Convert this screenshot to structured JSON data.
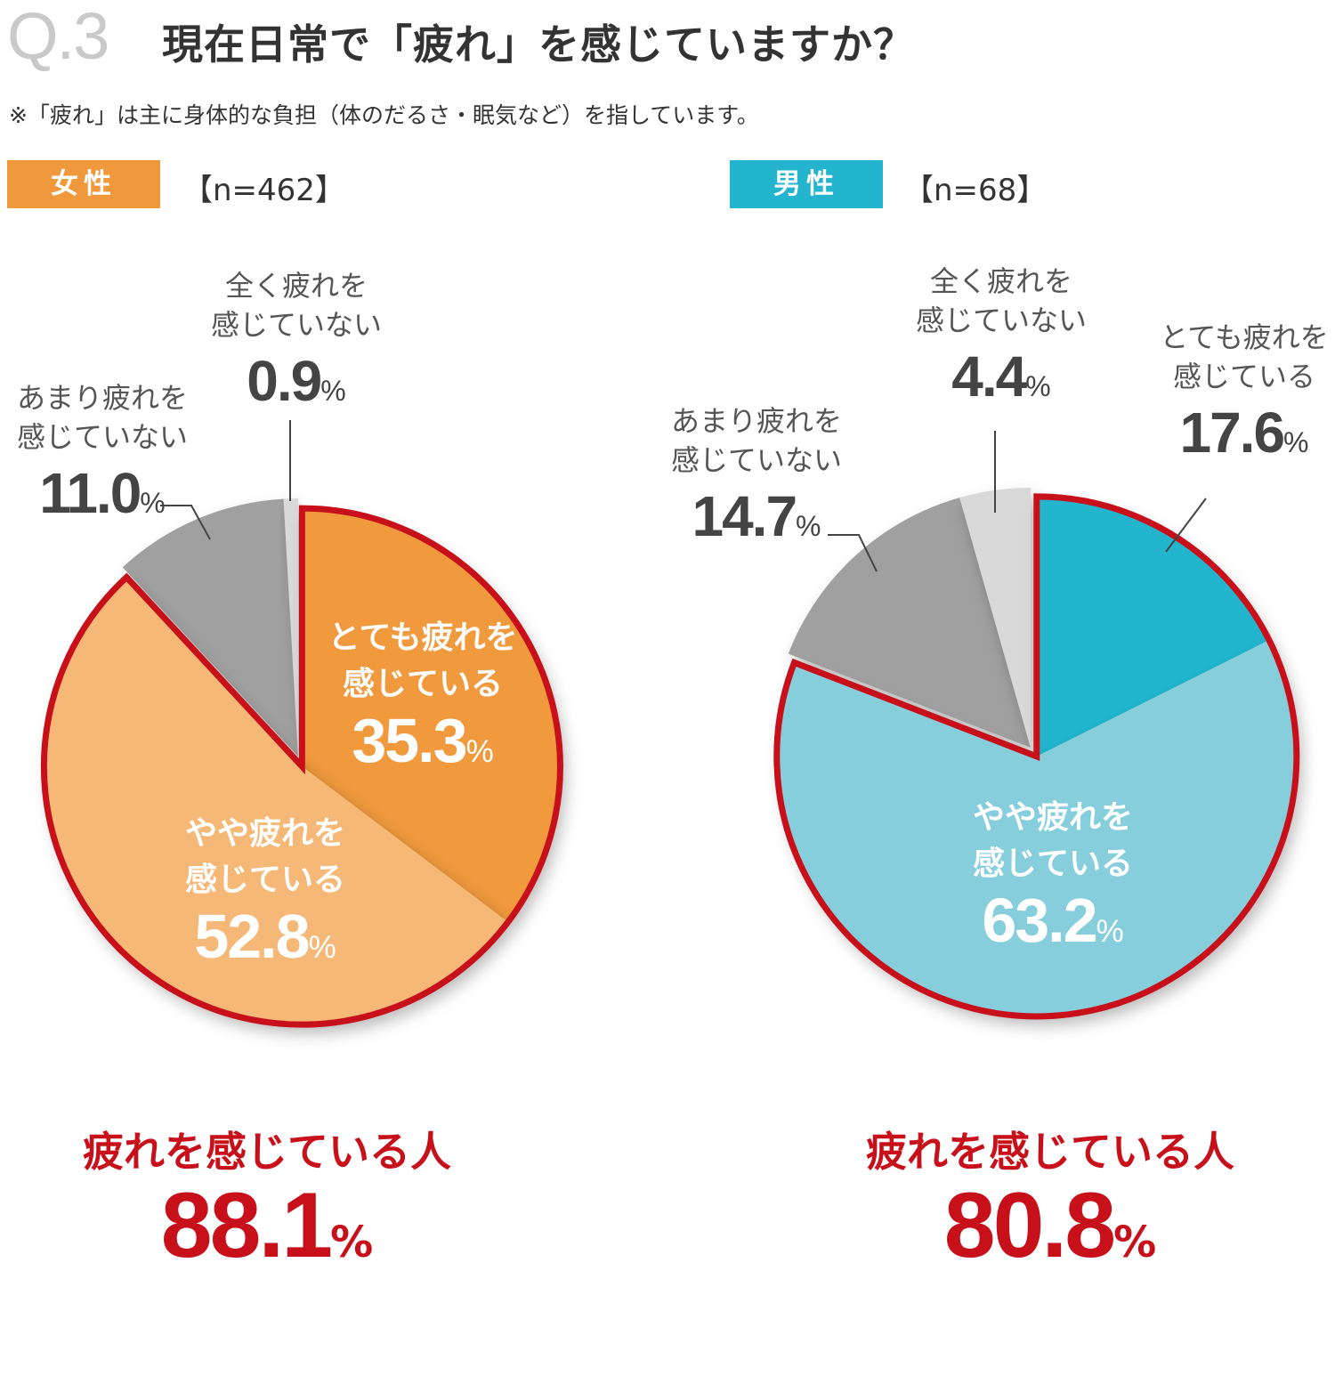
{
  "question": {
    "number": "Q.3",
    "title": "現在日常で「疲れ」を感じていますか？",
    "note": "※「疲れ」は主に身体的な負担（体のだるさ・眠気など）を指しています。"
  },
  "colors": {
    "highlight_outline": "#c8101a",
    "female_main": "#f0993c",
    "female_light": "#f5b877",
    "male_main": "#22b5cd",
    "male_light": "#87cedd",
    "gray": "#a0a0a0",
    "light_gray": "#d9d9d9"
  },
  "chart_data": [
    {
      "type": "pie",
      "badge": "女性",
      "n": "【n=462】",
      "slices": [
        {
          "label": "とても疲れを感じている",
          "value": 35.3,
          "display": "35.3",
          "color": "#f0993c",
          "highlight": true
        },
        {
          "label": "やや疲れを感じている",
          "value": 52.8,
          "display": "52.8",
          "color": "#f5b877",
          "highlight": true
        },
        {
          "label": "あまり疲れを感じていない",
          "value": 11.0,
          "display": "11.0",
          "color": "#a0a0a0",
          "highlight": false
        },
        {
          "label": "全く疲れを感じていない",
          "value": 0.9,
          "display": "0.9",
          "color": "#d9d9d9",
          "highlight": false
        }
      ],
      "total_label": "疲れを感じている人",
      "total_value": "88.1"
    },
    {
      "type": "pie",
      "badge": "男性",
      "n": "【n=68】",
      "slices": [
        {
          "label": "とても疲れを感じている",
          "value": 17.6,
          "display": "17.6",
          "color": "#22b5cd",
          "highlight": true
        },
        {
          "label": "やや疲れを感じている",
          "value": 63.2,
          "display": "63.2",
          "color": "#87cedd",
          "highlight": true
        },
        {
          "label": "あまり疲れを感じていない",
          "value": 14.7,
          "display": "14.7",
          "color": "#a0a0a0",
          "highlight": false
        },
        {
          "label": "全く疲れを感じていない",
          "value": 4.4,
          "display": "4.4",
          "color": "#d9d9d9",
          "highlight": false
        }
      ],
      "total_label": "疲れを感じている人",
      "total_value": "80.8"
    }
  ],
  "labels": {
    "very_tired_line1": "とても疲れを",
    "somewhat_tired_line1": "やや疲れを",
    "not_much_line1": "あまり疲れを",
    "not_at_all_line1": "全く疲れを",
    "feel_line2": "感じている",
    "not_feel_line2": "感じていない",
    "percent": "%"
  }
}
